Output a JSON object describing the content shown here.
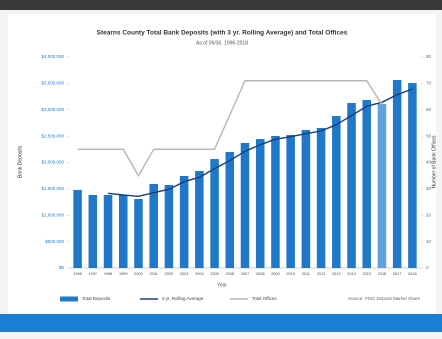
{
  "chart_data": {
    "type": "bar",
    "title": "Stearns County Total Bank Deposits (with 3 yr. Rolling Average) and Total Offices",
    "subtitle": "As of 06/30, 1996-2018",
    "x_label": "Year",
    "y_label": "Bank Deposits",
    "y2_label": "Number of Bank Offices",
    "source": "Source: FDIC Deposit Market Share",
    "categories": [
      "1996",
      "1997",
      "1998",
      "1999",
      "2000",
      "2001",
      "2002",
      "2003",
      "2004",
      "2005",
      "2006",
      "2007",
      "2008",
      "2009",
      "2010",
      "2011",
      "2012",
      "2013",
      "2014",
      "2015",
      "2016",
      "2017",
      "2018"
    ],
    "series": [
      {
        "name": "Total Deposits",
        "type": "bar",
        "color": "#1f78c8",
        "highlight_color": "#5fa2e0",
        "highlight_index": 20,
        "values": [
          1480000,
          1384000,
          1384000,
          1384000,
          1308000,
          1592000,
          1573000,
          1744000,
          1839000,
          2066000,
          2199000,
          2370000,
          2445000,
          2502000,
          2521000,
          2616000,
          2654000,
          2882000,
          3128000,
          3185000,
          3109000,
          3564000,
          3507000
        ]
      },
      {
        "name": "3 yr. Rolling Average",
        "type": "line",
        "color": "#1b3f7a",
        "values": [
          null,
          null,
          1416000,
          1384000,
          1359000,
          1428000,
          1491000,
          1636000,
          1719000,
          1883000,
          2035000,
          2212000,
          2338000,
          2439000,
          2489000,
          2546000,
          2597000,
          2717000,
          2888000,
          3065000,
          3141000,
          3286000,
          3393000
        ]
      },
      {
        "name": "Total Offices",
        "type": "line",
        "axis": "y2",
        "color": "#b5b5b5",
        "values": [
          45,
          45,
          45,
          45,
          35,
          45,
          45,
          45,
          45,
          45,
          58,
          71,
          71,
          71,
          71,
          71,
          71,
          71,
          71,
          71,
          62,
          null,
          null
        ]
      }
    ],
    "ylim": [
      0,
      4000000
    ],
    "yticks": [
      {
        "value": 0,
        "label": "$0"
      },
      {
        "value": 500000,
        "label": "$500,000"
      },
      {
        "value": 1000000,
        "label": "$1,000,000"
      },
      {
        "value": 1500000,
        "label": "$1,500,000"
      },
      {
        "value": 2000000,
        "label": "$2,000,000"
      },
      {
        "value": 2500000,
        "label": "$2,500,000"
      },
      {
        "value": 3000000,
        "label": "$3,000,000"
      },
      {
        "value": 3500000,
        "label": "$3,500,000"
      },
      {
        "value": 4000000,
        "label": "$4,000,000"
      }
    ],
    "y2lim": [
      0,
      80
    ],
    "y2ticks": [
      0,
      10,
      20,
      30,
      40,
      50,
      60,
      70,
      80
    ]
  }
}
